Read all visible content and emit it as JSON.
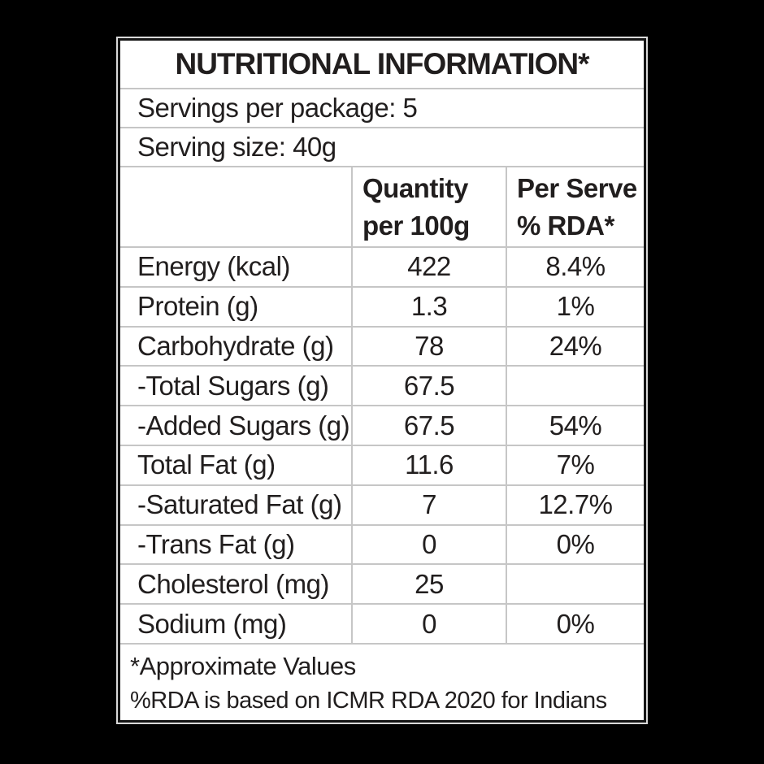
{
  "card": {
    "title": "NUTRITIONAL INFORMATION*",
    "servings_line": "Servings per package: 5",
    "serving_size_line": "Serving size: 40g",
    "columns": {
      "quantity_line1": "Quantity",
      "quantity_line2": "per 100g",
      "per_serve_line1": "Per Serve",
      "per_serve_line2": "% RDA*"
    },
    "rows": [
      {
        "label": "Energy (kcal)",
        "qty": "422",
        "rda": "8.4%"
      },
      {
        "label": "Protein (g)",
        "qty": "1.3",
        "rda": "1%"
      },
      {
        "label": "Carbohydrate (g)",
        "qty": "78",
        "rda": "24%"
      },
      {
        "label": "-Total Sugars (g)",
        "qty": "67.5",
        "rda": ""
      },
      {
        "label": "-Added Sugars (g)",
        "qty": "67.5",
        "rda": "54%"
      },
      {
        "label": "Total Fat (g)",
        "qty": "11.6",
        "rda": "7%"
      },
      {
        "label": "-Saturated Fat (g)",
        "qty": "7",
        "rda": "12.7%"
      },
      {
        "label": "-Trans Fat (g)",
        "qty": "0",
        "rda": "0%"
      },
      {
        "label": "Cholesterol (mg)",
        "qty": "25",
        "rda": ""
      },
      {
        "label": "Sodium (mg)",
        "qty": "0",
        "rda": "0%"
      }
    ],
    "footnotes": [
      "*Approximate Values",
      "%RDA is based on ICMR RDA 2020 for Indians"
    ]
  },
  "colors": {
    "page_bg": "#000000",
    "card_bg": "#ffffff",
    "text": "#211e1e",
    "grid_line": "#c6c6c6",
    "card_border": "#141414",
    "outer_halo": "#d9d9d9"
  }
}
